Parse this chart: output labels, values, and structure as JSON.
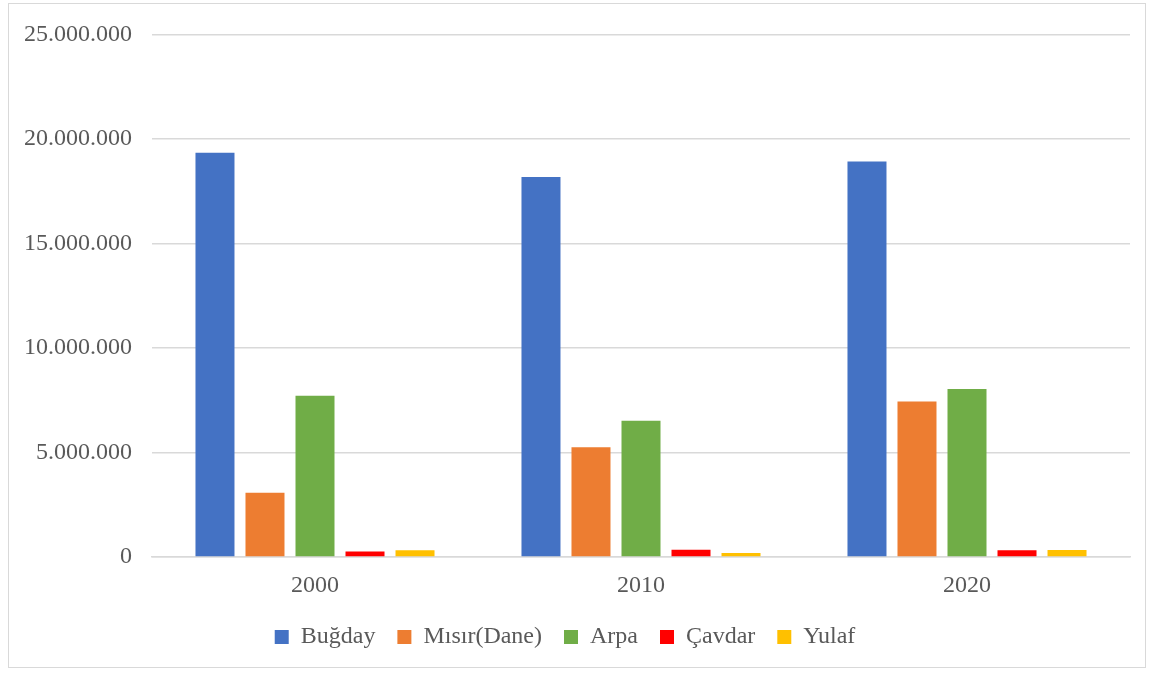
{
  "chart_data": {
    "type": "bar",
    "categories": [
      "2000",
      "2010",
      "2020"
    ],
    "series": [
      {
        "name": "Buğday",
        "color": "#4472c4",
        "values": [
          19340000,
          18180000,
          18920000
        ]
      },
      {
        "name": "Mısır(Dane)",
        "color": "#ed7d31",
        "values": [
          3070000,
          5250000,
          7440000
        ]
      },
      {
        "name": "Arpa",
        "color": "#70ad47",
        "values": [
          7710000,
          6520000,
          8040000
        ]
      },
      {
        "name": "Çavdar",
        "color": "#ff0000",
        "values": [
          260000,
          350000,
          320000
        ]
      },
      {
        "name": "Yulaf",
        "color": "#ffc000",
        "values": [
          320000,
          190000,
          330000
        ]
      }
    ],
    "ylim": [
      0,
      25000000
    ],
    "yticks": [
      0,
      {
        "value": 5000000,
        "label": "5.000.000"
      },
      {
        "value": 10000000,
        "label": "10.000.000"
      },
      {
        "value": 15000000,
        "label": "15.000.000"
      },
      {
        "value": 20000000,
        "label": "20.000.000"
      },
      {
        "value": 25000000,
        "label": "25.000.000"
      }
    ],
    "grid": "y",
    "legend": "bottom"
  }
}
